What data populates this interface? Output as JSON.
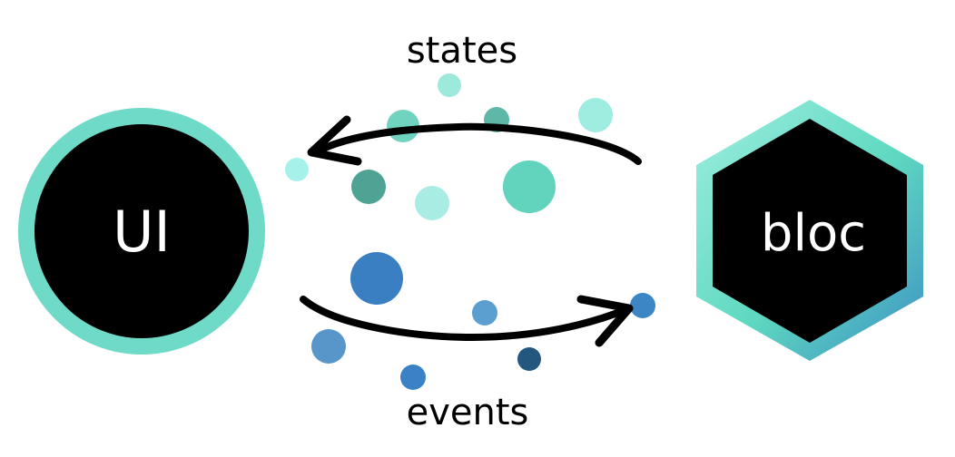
{
  "diagram": {
    "top_label": "states",
    "bottom_label": "events",
    "ui_node": {
      "label": "UI",
      "ring_color": "#6fdac7",
      "fill_color": "#000000"
    },
    "bloc_node": {
      "label": "bloc",
      "border_color_start": "#9eeee0",
      "border_color_mid": "#5ed8c0",
      "border_color_end": "#3d8fc4",
      "fill_color": "#000000"
    },
    "states_arrow": {
      "direction": "bloc-to-ui",
      "color": "#000000"
    },
    "events_arrow": {
      "direction": "ui-to-bloc",
      "color": "#000000"
    },
    "state_dot_colors": [
      "#9de9dc",
      "#6fd3c0",
      "#5fb8a7",
      "#a6f2ea",
      "#4fa394",
      "#a9ece3",
      "#62d3bd",
      "#9fece1"
    ],
    "event_dot_colors": [
      "#3a7fc2",
      "#5b9fd0",
      "#3d86c6",
      "#5895c8",
      "#3a81c6",
      "#23577d"
    ]
  }
}
